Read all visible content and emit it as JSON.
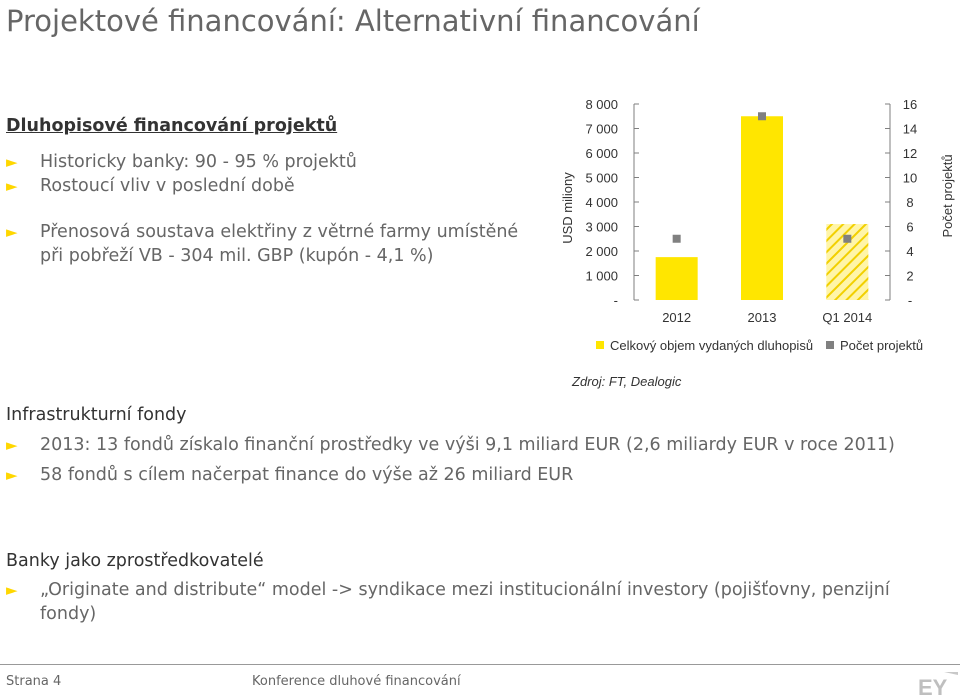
{
  "title": "Projektové financování: Alternativní financování",
  "section1": {
    "heading": "Dluhopisové financování projektů",
    "bullets": [
      "Historicky banky: 90 - 95 % projektů",
      "Rostoucí vliv v poslední době",
      "Přenosová soustava elektřiny z větrné farmy umístěné při pobřeží VB - 304 mil. GBP (kupón - 4,1 %)"
    ]
  },
  "source": "Zdroj: FT, Dealogic",
  "section2": {
    "heading": "Infrastrukturní fondy",
    "bullets": [
      "2013: 13 fondů získalo finanční prostředky ve výši 9,1 miliard EUR (2,6 miliardy EUR v roce 2011)",
      "58 fondů s cílem načerpat finance do výše až 26 miliard EUR"
    ]
  },
  "section3": {
    "heading": "Banky jako zprostředkovatelé",
    "bullets": [
      "„Originate and distribute“ model -> syndikace mezi institucionální investory (pojišťovny, penzijní fondy)"
    ]
  },
  "footer": {
    "page": "Strana 4",
    "conference": "Konference dluhové financování",
    "logo_text": "EY"
  },
  "colors": {
    "accent": "#ffe600",
    "marker": "#808080",
    "text": "#666666"
  },
  "chart_data": {
    "type": "bar",
    "categories": [
      "2012",
      "2013",
      "Q1 2014"
    ],
    "series": [
      {
        "name": "Celkový objem vydaných dluhopisů",
        "axis": "left",
        "values": [
          1750,
          7500,
          3100
        ],
        "hatched": [
          false,
          false,
          true
        ]
      },
      {
        "name": "Počet projektů",
        "axis": "right",
        "type": "scatter",
        "values": [
          5,
          15,
          5
        ]
      }
    ],
    "ylabel": "USD miliony",
    "y2label": "Počet projektů",
    "ylim": [
      0,
      8000
    ],
    "y2lim": [
      0,
      16
    ],
    "yticks": [
      "-",
      "1 000",
      "2 000",
      "3 000",
      "4 000",
      "5 000",
      "6 000",
      "7 000",
      "8 000"
    ],
    "y2ticks": [
      "-",
      "2",
      "4",
      "6",
      "8",
      "10",
      "12",
      "14",
      "16"
    ],
    "grid": false,
    "legend": "bottom"
  }
}
